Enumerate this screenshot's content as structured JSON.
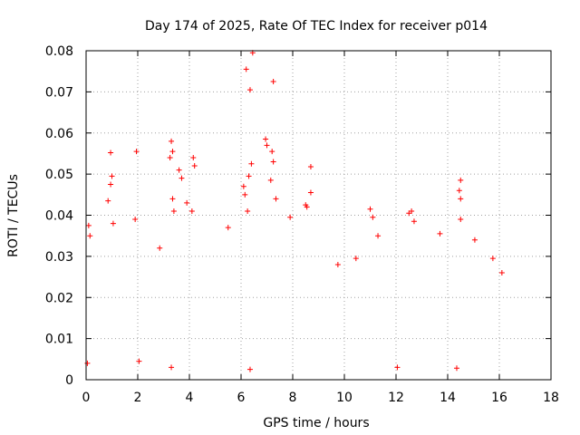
{
  "chart_data": {
    "type": "scatter",
    "title": "Day 174 of 2025, Rate Of TEC Index for receiver p014",
    "xlabel": "GPS time / hours",
    "ylabel": "ROTI / TECUs",
    "xlim": [
      0,
      18
    ],
    "ylim": [
      0,
      0.08
    ],
    "x_ticks": [
      "0",
      "2",
      "4",
      "6",
      "8",
      "10",
      "12",
      "14",
      "16",
      "18"
    ],
    "y_ticks": [
      "0",
      "0.01",
      "0.02",
      "0.03",
      "0.04",
      "0.05",
      "0.06",
      "0.07",
      "0.08"
    ],
    "grid": true,
    "marker": "+",
    "color": "#ff0000",
    "series": [
      {
        "name": "p014",
        "points": [
          [
            6.45,
            0.0795
          ],
          [
            6.2,
            0.0755
          ],
          [
            6.35,
            0.0705
          ],
          [
            7.25,
            0.0725
          ],
          [
            6.95,
            0.0585
          ],
          [
            7.0,
            0.057
          ],
          [
            7.2,
            0.0555
          ],
          [
            1.95,
            0.0555
          ],
          [
            0.95,
            0.0552
          ],
          [
            3.3,
            0.058
          ],
          [
            3.35,
            0.0555
          ],
          [
            3.25,
            0.054
          ],
          [
            4.15,
            0.054
          ],
          [
            4.2,
            0.052
          ],
          [
            3.6,
            0.051
          ],
          [
            3.7,
            0.049
          ],
          [
            6.4,
            0.0525
          ],
          [
            6.3,
            0.0495
          ],
          [
            7.25,
            0.053
          ],
          [
            7.15,
            0.0485
          ],
          [
            8.7,
            0.0518
          ],
          [
            6.1,
            0.047
          ],
          [
            6.15,
            0.045
          ],
          [
            3.9,
            0.043
          ],
          [
            1.0,
            0.0495
          ],
          [
            0.95,
            0.0475
          ],
          [
            0.85,
            0.0435
          ],
          [
            14.5,
            0.0485
          ],
          [
            14.45,
            0.046
          ],
          [
            14.5,
            0.044
          ],
          [
            12.5,
            0.0405
          ],
          [
            12.6,
            0.041
          ],
          [
            11.0,
            0.0415
          ],
          [
            11.1,
            0.0395
          ],
          [
            14.5,
            0.039
          ],
          [
            7.35,
            0.044
          ],
          [
            8.5,
            0.0425
          ],
          [
            8.7,
            0.0455
          ],
          [
            8.55,
            0.042
          ],
          [
            0.1,
            0.0375
          ],
          [
            0.15,
            0.035
          ],
          [
            1.9,
            0.039
          ],
          [
            4.1,
            0.041
          ],
          [
            6.25,
            0.041
          ],
          [
            3.35,
            0.044
          ],
          [
            3.4,
            0.041
          ],
          [
            1.05,
            0.038
          ],
          [
            12.7,
            0.0385
          ],
          [
            11.3,
            0.035
          ],
          [
            13.7,
            0.0355
          ],
          [
            15.05,
            0.034
          ],
          [
            7.9,
            0.0395
          ],
          [
            5.5,
            0.037
          ],
          [
            2.85,
            0.032
          ],
          [
            9.75,
            0.028
          ],
          [
            10.45,
            0.0295
          ],
          [
            15.75,
            0.0295
          ],
          [
            16.1,
            0.026
          ],
          [
            0.05,
            0.004
          ],
          [
            3.3,
            0.003
          ],
          [
            6.35,
            0.0025
          ],
          [
            12.05,
            0.003
          ],
          [
            14.35,
            0.0028
          ],
          [
            2.05,
            0.0045
          ]
        ]
      }
    ]
  }
}
